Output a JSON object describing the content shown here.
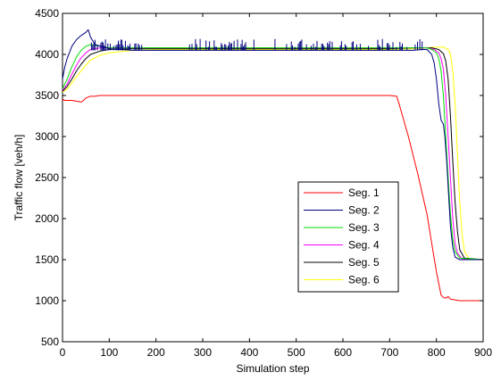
{
  "chart_data": {
    "type": "line",
    "title": "",
    "xlabel": "Simulation step",
    "ylabel": "Traffic flow [veh/h]",
    "xlim": [
      0,
      900
    ],
    "ylim": [
      500,
      4500
    ],
    "xticks": [
      0,
      100,
      200,
      300,
      400,
      500,
      600,
      700,
      800,
      900
    ],
    "yticks": [
      500,
      1000,
      1500,
      2000,
      2500,
      3000,
      3500,
      4000,
      4500
    ],
    "grid": false,
    "legend_position": "lower-right",
    "series": [
      {
        "name": "Seg. 1",
        "color": "#ff0000",
        "x": [
          0,
          2,
          5,
          10,
          20,
          30,
          40,
          45,
          50,
          55,
          60,
          70,
          80,
          100,
          150,
          200,
          300,
          400,
          500,
          600,
          700,
          715,
          720,
          740,
          760,
          780,
          790,
          800,
          810,
          815,
          820,
          825,
          830,
          850,
          900
        ],
        "y": [
          3430,
          3450,
          3440,
          3440,
          3440,
          3430,
          3420,
          3440,
          3470,
          3480,
          3490,
          3490,
          3500,
          3500,
          3500,
          3500,
          3500,
          3500,
          3500,
          3500,
          3500,
          3490,
          3400,
          3000,
          2550,
          2050,
          1700,
          1350,
          1070,
          1040,
          1030,
          1050,
          1020,
          1000,
          1000
        ]
      },
      {
        "name": "Seg. 2",
        "color": "#000080",
        "x": [
          0,
          5,
          10,
          20,
          30,
          40,
          50,
          55,
          60,
          70,
          100,
          150,
          200,
          300,
          400,
          500,
          600,
          700,
          750,
          770,
          780,
          790,
          795,
          800,
          805,
          810,
          815,
          818,
          822,
          826,
          830,
          835,
          840,
          850,
          900
        ],
        "y": [
          3700,
          3850,
          3950,
          4100,
          4180,
          4230,
          4270,
          4300,
          4210,
          4120,
          4070,
          4050,
          4050,
          4050,
          4050,
          4050,
          4050,
          4050,
          4050,
          4060,
          4060,
          4000,
          3900,
          3700,
          3400,
          3200,
          3150,
          3000,
          2700,
          2300,
          1900,
          1650,
          1530,
          1500,
          1500
        ]
      },
      {
        "name": "Seg. 3",
        "color": "#00dd00",
        "x": [
          0,
          10,
          20,
          30,
          40,
          50,
          60,
          80,
          100,
          150,
          200,
          300,
          400,
          500,
          600,
          700,
          750,
          780,
          790,
          800,
          805,
          810,
          815,
          820,
          825,
          830,
          835,
          840,
          850,
          900
        ],
        "y": [
          3580,
          3700,
          3850,
          3970,
          4050,
          4100,
          4120,
          4100,
          4080,
          4080,
          4080,
          4080,
          4080,
          4080,
          4080,
          4080,
          4080,
          4080,
          4060,
          4020,
          3950,
          3800,
          3500,
          3000,
          2500,
          2050,
          1750,
          1600,
          1520,
          1500
        ]
      },
      {
        "name": "Seg. 4",
        "color": "#ff00ff",
        "x": [
          0,
          10,
          20,
          30,
          40,
          50,
          60,
          80,
          100,
          150,
          200,
          300,
          400,
          500,
          600,
          700,
          750,
          780,
          795,
          805,
          810,
          815,
          820,
          825,
          830,
          835,
          840,
          845,
          855,
          900
        ],
        "y": [
          3560,
          3640,
          3760,
          3870,
          3960,
          4020,
          4060,
          4080,
          4080,
          4080,
          4080,
          4080,
          4080,
          4080,
          4080,
          4080,
          4080,
          4080,
          4060,
          4020,
          3950,
          3820,
          3500,
          3000,
          2500,
          2000,
          1700,
          1580,
          1510,
          1500
        ]
      },
      {
        "name": "Seg. 5",
        "color": "#000000",
        "x": [
          0,
          10,
          20,
          30,
          40,
          50,
          60,
          80,
          100,
          150,
          200,
          300,
          400,
          500,
          600,
          700,
          750,
          790,
          805,
          815,
          820,
          825,
          830,
          835,
          840,
          845,
          850,
          860,
          900
        ],
        "y": [
          3550,
          3610,
          3700,
          3800,
          3880,
          3950,
          4000,
          4040,
          4060,
          4070,
          4070,
          4070,
          4070,
          4070,
          4070,
          4070,
          4080,
          4080,
          4060,
          4010,
          3920,
          3700,
          3250,
          2700,
          2200,
          1850,
          1620,
          1520,
          1500
        ]
      },
      {
        "name": "Seg. 6",
        "color": "#ffff00",
        "x": [
          0,
          10,
          20,
          30,
          40,
          50,
          60,
          80,
          100,
          150,
          200,
          300,
          400,
          500,
          600,
          700,
          750,
          800,
          815,
          825,
          830,
          835,
          840,
          845,
          850,
          855,
          860,
          870,
          900
        ],
        "y": [
          3540,
          3580,
          3650,
          3730,
          3800,
          3870,
          3930,
          3990,
          4020,
          4050,
          4060,
          4060,
          4060,
          4060,
          4060,
          4060,
          4070,
          4090,
          4090,
          4060,
          4000,
          3800,
          3400,
          2800,
          2200,
          1800,
          1600,
          1510,
          1500
        ]
      }
    ]
  }
}
